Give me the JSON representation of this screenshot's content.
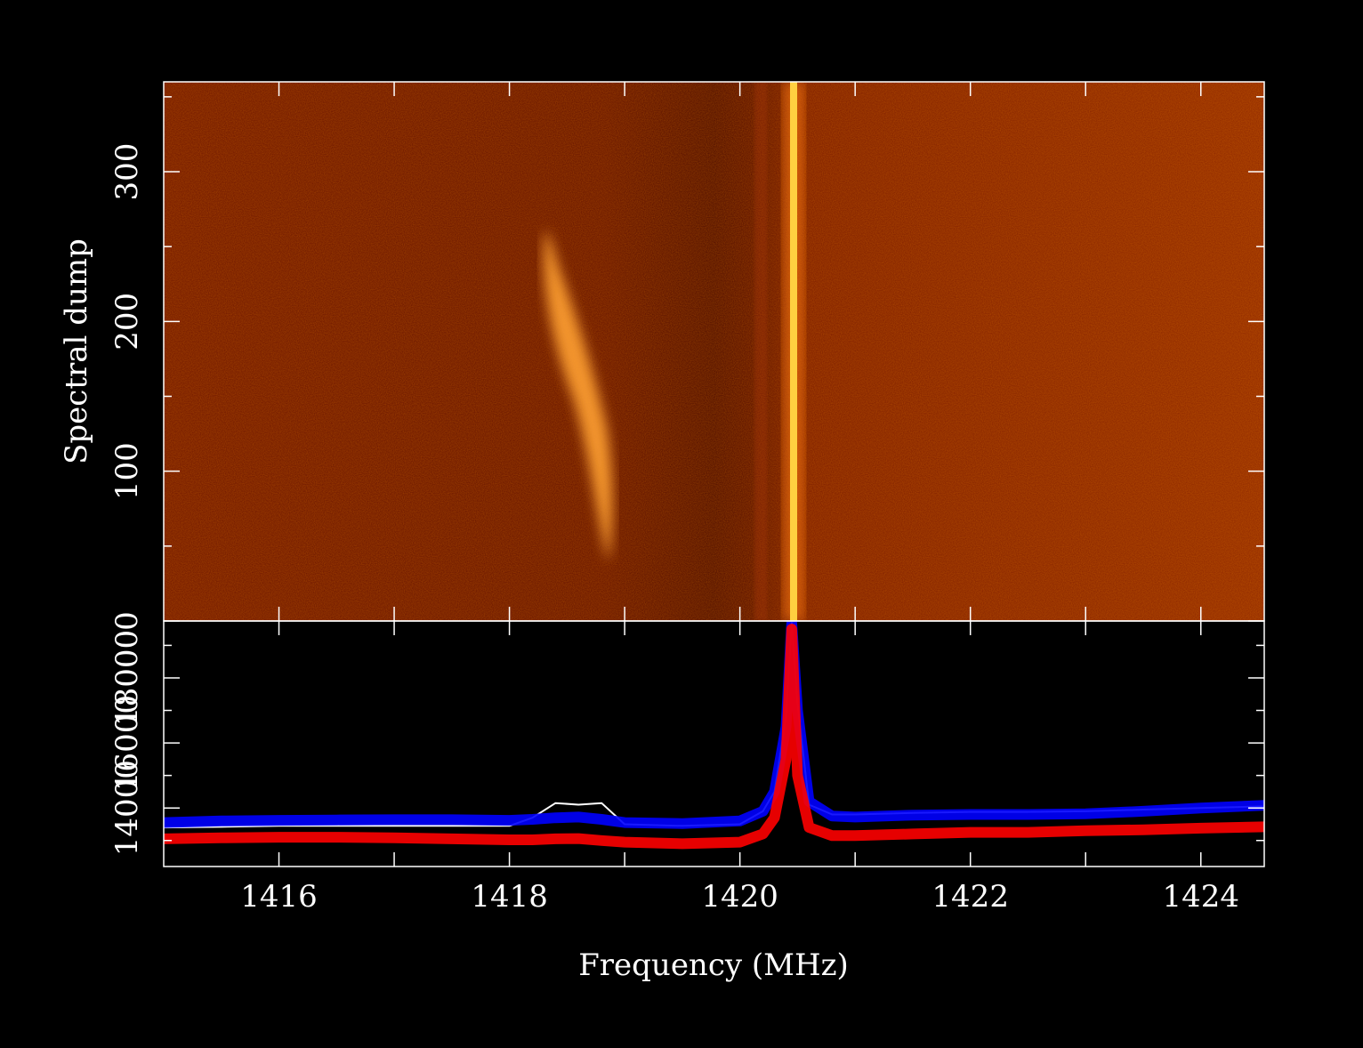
{
  "chart_data": [
    {
      "type": "heatmap",
      "ylabel": "Spectral dump",
      "xlim": [
        1415,
        1424.55
      ],
      "xticks": [
        1416,
        1418,
        1420,
        1422,
        1424
      ],
      "xminorticks": [
        1417,
        1419,
        1421,
        1423
      ],
      "ylim": [
        0,
        360
      ],
      "yticks": [
        0,
        100,
        200,
        300
      ],
      "yminorticks": [
        50,
        150,
        250,
        350
      ]
    },
    {
      "type": "line",
      "xlabel": "Frequency (MHz)",
      "xlim": [
        1415,
        1424.55
      ],
      "xticks": [
        1416,
        1418,
        1420,
        1422,
        1424
      ],
      "xminorticks": [
        1417,
        1419,
        1421,
        1423
      ],
      "ylim": [
        12200,
        19750
      ],
      "yticks": [
        14000,
        16000,
        18000
      ],
      "yminorticks": [
        13000,
        15000,
        17000,
        19000
      ],
      "x": [
        1415,
        1415.5,
        1416,
        1416.5,
        1417,
        1417.5,
        1418,
        1418.2,
        1418.4,
        1418.6,
        1418.8,
        1419,
        1419.5,
        1420,
        1420.2,
        1420.3,
        1420.4,
        1420.45,
        1420.5,
        1420.6,
        1420.8,
        1421,
        1421.5,
        1422,
        1422.5,
        1423,
        1423.5,
        1424,
        1424.55
      ],
      "series": [
        {
          "color": "#ffffff",
          "values": [
            13400,
            13420,
            13450,
            13450,
            13450,
            13450,
            13450,
            13700,
            14150,
            14100,
            14150,
            13500,
            13450,
            13500,
            13900,
            14500,
            16800,
            19700,
            17200,
            14100,
            13800,
            13800,
            13850,
            13880,
            13880,
            13900,
            13950,
            14000,
            14050
          ]
        },
        {
          "color": "#0000ff",
          "values": [
            13550,
            13600,
            13620,
            13630,
            13640,
            13640,
            13620,
            13650,
            13700,
            13720,
            13650,
            13550,
            13520,
            13600,
            13900,
            14500,
            16500,
            19700,
            17000,
            14200,
            13750,
            13720,
            13780,
            13800,
            13800,
            13820,
            13900,
            14000,
            14080
          ]
        },
        {
          "color": "#ff0000",
          "values": [
            13050,
            13080,
            13100,
            13100,
            13080,
            13050,
            13020,
            13020,
            13050,
            13060,
            13000,
            12950,
            12900,
            12950,
            13200,
            13700,
            15500,
            19500,
            15000,
            13400,
            13150,
            13150,
            13200,
            13250,
            13250,
            13300,
            13330,
            13380,
            13420
          ]
        }
      ]
    }
  ]
}
